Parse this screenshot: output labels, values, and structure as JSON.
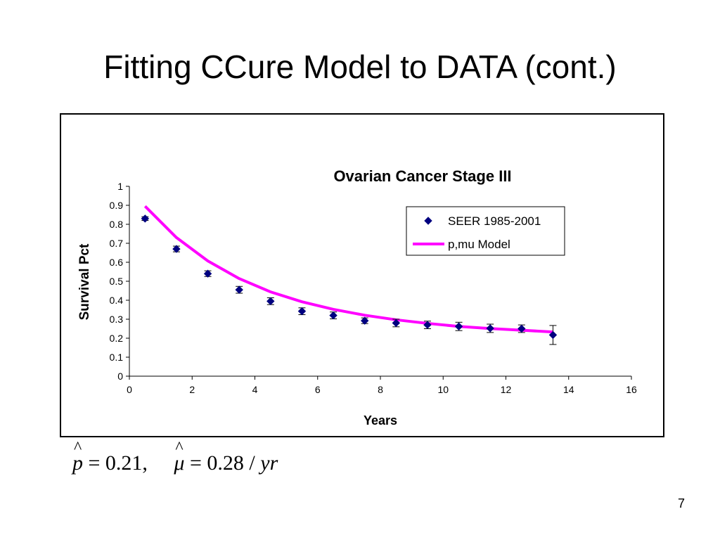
{
  "slide": {
    "title": "Fitting CCure Model to DATA (cont.)",
    "page_number": "7",
    "formula": {
      "p_symbol": "p",
      "p_value": "= 0.21,",
      "mu_symbol": "μ",
      "mu_value": "= 0.28 / ",
      "unit": "yr"
    }
  },
  "colors": {
    "data_points": "#000080",
    "model_line": "#FF00FF",
    "axis": "#000000"
  },
  "chart_data": {
    "type": "scatter",
    "title": "Ovarian Cancer Stage III",
    "xlabel": "Years",
    "ylabel": "Survival Pct",
    "xlim": [
      0,
      16
    ],
    "ylim": [
      0,
      1
    ],
    "x_ticks": [
      0,
      2,
      4,
      6,
      8,
      10,
      12,
      14,
      16
    ],
    "y_ticks": [
      0,
      0.1,
      0.2,
      0.3,
      0.4,
      0.5,
      0.6,
      0.7,
      0.8,
      0.9,
      1
    ],
    "y_tick_labels": [
      "0",
      "0.1",
      "0.2",
      "0.3",
      "0.4",
      "0.5",
      "0.6",
      "0.7",
      "0.8",
      "0.9",
      "1"
    ],
    "grid": false,
    "legend": "top-right",
    "series": [
      {
        "name": "SEER 1985-2001",
        "kind": "points",
        "marker": "diamond",
        "color": "#000080",
        "x": [
          0.5,
          1.5,
          2.5,
          3.5,
          4.5,
          5.5,
          6.5,
          7.5,
          8.5,
          9.5,
          10.5,
          11.5,
          12.5,
          13.5
        ],
        "y": [
          0.83,
          0.67,
          0.54,
          0.455,
          0.395,
          0.342,
          0.32,
          0.292,
          0.28,
          0.27,
          0.262,
          0.252,
          0.25,
          0.217
        ],
        "error": [
          0.01,
          0.015,
          0.015,
          0.018,
          0.018,
          0.018,
          0.018,
          0.015,
          0.02,
          0.02,
          0.022,
          0.022,
          0.02,
          0.05
        ]
      },
      {
        "name": "p,mu Model",
        "kind": "line",
        "color": "#FF00FF",
        "x": [
          0.5,
          1.5,
          2.5,
          3.5,
          4.5,
          5.5,
          6.5,
          7.5,
          8.5,
          9.5,
          10.5,
          11.5,
          12.5,
          13.5
        ],
        "y": [
          0.895,
          0.73,
          0.607,
          0.514,
          0.444,
          0.392,
          0.352,
          0.321,
          0.297,
          0.278,
          0.262,
          0.251,
          0.242,
          0.233
        ]
      }
    ]
  }
}
